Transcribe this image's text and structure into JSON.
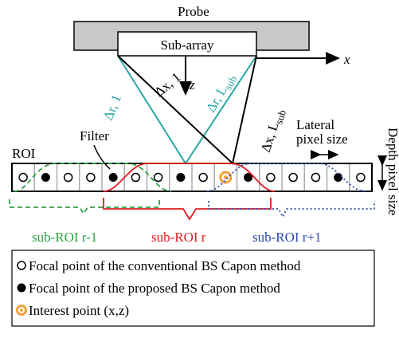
{
  "probe": {
    "label": "Probe",
    "subarray": "Sub-array",
    "x_axis": "x",
    "z_axis": "z"
  },
  "beams": {
    "dr1": "Δr, 1",
    "drL": {
      "main": "Δr, L",
      "sub": "sub"
    },
    "dx1": "Δx, 1",
    "dxL": {
      "main": "Δx, L",
      "sub": "sub"
    }
  },
  "roi": {
    "label": "ROI",
    "filter": "Filter",
    "lateral": [
      "Lateral",
      "pixel size"
    ],
    "depth": "Depth pixel size"
  },
  "sub_rois": [
    "sub-ROI r-1",
    "sub-ROI r",
    "sub-ROI r+1"
  ],
  "legend": [
    "Focal point of the conventional BS Capon method",
    "Focal point of the proposed BS Capon method",
    "Interest point (x,z)"
  ]
}
